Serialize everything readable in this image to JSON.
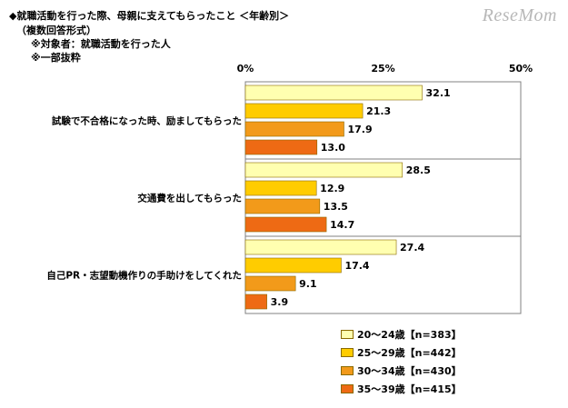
{
  "header": {
    "title": "◆就職活動を行った際、母親に支えてもらったこと ＜年齢別＞",
    "note_format": "（複数回答形式）",
    "note_target": "※対象者：就職活動を行った人",
    "note_excerpt": "※一部抜粋"
  },
  "watermark": "ReseMom",
  "chart_data": {
    "type": "bar",
    "orientation": "horizontal",
    "title": "◆就職活動を行った際、母親に支えてもらったこと ＜年齢別＞",
    "xlim": [
      0,
      50
    ],
    "ticks": [
      0,
      25,
      50
    ],
    "tick_labels": [
      "0%",
      "25%",
      "50%"
    ],
    "grid": false,
    "legend_position": "bottom-right",
    "categories": [
      "試験で不合格になった時、励ましてもらった",
      "交通費を出してもらった",
      "自己PR・志望動機作りの手助けをしてくれた"
    ],
    "series": [
      {
        "name": "20～24歳【n=383】",
        "color": "#ffffb0",
        "values": [
          32.1,
          28.5,
          27.4
        ]
      },
      {
        "name": "25～29歳【n=442】",
        "color": "#ffcc00",
        "values": [
          21.3,
          12.9,
          17.4
        ]
      },
      {
        "name": "30～34歳【n=430】",
        "color": "#f29a1a",
        "values": [
          17.9,
          13.5,
          9.1
        ]
      },
      {
        "name": "35～39歳【n=415】",
        "color": "#ee6a14",
        "values": [
          13.0,
          14.7,
          3.9
        ]
      }
    ]
  }
}
